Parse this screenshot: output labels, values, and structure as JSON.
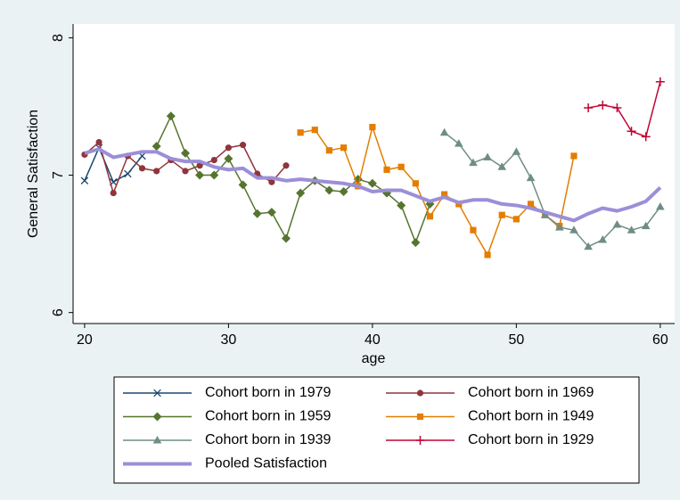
{
  "chart_data": {
    "type": "line",
    "xlabel": "age",
    "ylabel": "General Satisfaction",
    "x": [
      20,
      21,
      22,
      23,
      24,
      25,
      26,
      27,
      28,
      29,
      30,
      31,
      32,
      33,
      34,
      35,
      36,
      37,
      38,
      39,
      40,
      41,
      42,
      43,
      44,
      45,
      46,
      47,
      48,
      49,
      50,
      51,
      52,
      53,
      54,
      55,
      56,
      57,
      58,
      59,
      60
    ],
    "xlim": [
      19.2,
      61
    ],
    "xticks": [
      20,
      30,
      40,
      50,
      60
    ],
    "ylim": [
      5.92,
      8.1
    ],
    "yticks": [
      6,
      7,
      8
    ],
    "grid": false,
    "legend": "bottom",
    "series": [
      {
        "name": "Cohort born in 1979",
        "color": "#1a476f",
        "marker": "x",
        "values": [
          6.96,
          7.2,
          6.95,
          7.01,
          7.14,
          null,
          null,
          null,
          null,
          null,
          null,
          null,
          null,
          null,
          null,
          null,
          null,
          null,
          null,
          null,
          null,
          null,
          null,
          null,
          null,
          null,
          null,
          null,
          null,
          null,
          null,
          null,
          null,
          null,
          null,
          null,
          null,
          null,
          null,
          null,
          null
        ]
      },
      {
        "name": "Cohort born in 1969",
        "color": "#90353b",
        "marker": "circle",
        "values": [
          7.15,
          7.24,
          6.87,
          7.14,
          7.05,
          7.03,
          7.11,
          7.03,
          7.07,
          7.11,
          7.2,
          7.22,
          7.01,
          6.95,
          7.07,
          null,
          null,
          null,
          null,
          null,
          null,
          null,
          null,
          null,
          null,
          null,
          null,
          null,
          null,
          null,
          null,
          null,
          null,
          null,
          null,
          null,
          null,
          null,
          null,
          null,
          null
        ]
      },
      {
        "name": "Cohort born in 1959",
        "color": "#55752f",
        "marker": "diamond",
        "values": [
          null,
          null,
          null,
          null,
          null,
          7.21,
          7.43,
          7.16,
          7.0,
          7.0,
          7.12,
          6.93,
          6.72,
          6.73,
          6.54,
          6.87,
          6.96,
          6.89,
          6.88,
          6.97,
          6.94,
          6.87,
          6.78,
          6.51,
          6.79,
          null,
          null,
          null,
          null,
          null,
          null,
          null,
          null,
          null,
          null,
          null,
          null,
          null,
          null,
          null,
          null
        ]
      },
      {
        "name": "Cohort born in 1949",
        "color": "#e37e00",
        "marker": "square",
        "values": [
          null,
          null,
          null,
          null,
          null,
          null,
          null,
          null,
          null,
          null,
          null,
          null,
          null,
          null,
          null,
          7.31,
          7.33,
          7.18,
          7.2,
          6.92,
          7.35,
          7.04,
          7.06,
          6.94,
          6.7,
          6.86,
          6.79,
          6.6,
          6.42,
          6.71,
          6.68,
          6.79,
          6.71,
          6.63,
          7.14,
          null,
          null,
          null,
          null,
          null,
          null
        ]
      },
      {
        "name": "Cohort born in 1939",
        "color": "#6e8e84",
        "marker": "triangle",
        "values": [
          null,
          null,
          null,
          null,
          null,
          null,
          null,
          null,
          null,
          null,
          null,
          null,
          null,
          null,
          null,
          null,
          null,
          null,
          null,
          null,
          null,
          null,
          null,
          null,
          null,
          7.31,
          7.23,
          7.09,
          7.13,
          7.06,
          7.17,
          6.98,
          6.71,
          6.62,
          6.6,
          6.48,
          6.53,
          6.64,
          6.6,
          6.63,
          6.77
        ]
      },
      {
        "name": "Cohort born in 1929",
        "color": "#c10534",
        "marker": "plus",
        "values": [
          null,
          null,
          null,
          null,
          null,
          null,
          null,
          null,
          null,
          null,
          null,
          null,
          null,
          null,
          null,
          null,
          null,
          null,
          null,
          null,
          null,
          null,
          null,
          null,
          null,
          null,
          null,
          null,
          null,
          null,
          null,
          null,
          null,
          null,
          null,
          7.49,
          7.51,
          7.49,
          7.32,
          7.28,
          7.68
        ]
      },
      {
        "name": "Pooled Satisfaction",
        "color": "#9b8fd8",
        "marker": "none",
        "values": [
          7.16,
          7.19,
          7.13,
          7.15,
          7.17,
          7.17,
          7.12,
          7.1,
          7.1,
          7.06,
          7.04,
          7.05,
          6.98,
          6.98,
          6.96,
          6.97,
          6.96,
          6.95,
          6.94,
          6.92,
          6.88,
          6.89,
          6.89,
          6.85,
          6.81,
          6.84,
          6.8,
          6.82,
          6.82,
          6.79,
          6.78,
          6.76,
          6.73,
          6.7,
          6.67,
          6.72,
          6.76,
          6.74,
          6.77,
          6.81,
          6.91
        ]
      }
    ]
  }
}
